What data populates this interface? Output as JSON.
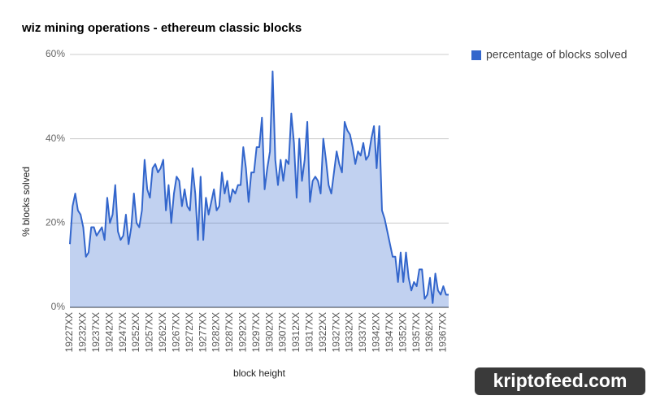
{
  "chart_data": {
    "type": "area",
    "title": "wiz mining operations - ethereum classic blocks",
    "x_label": "block height",
    "y_label": "% blocks solved",
    "categories": [
      "19227XX",
      null,
      null,
      null,
      null,
      "19232XX",
      null,
      null,
      null,
      null,
      "19237XX",
      null,
      null,
      null,
      null,
      "19242XX",
      null,
      null,
      null,
      null,
      "19247XX",
      null,
      null,
      null,
      null,
      "19252XX",
      null,
      null,
      null,
      null,
      "19257XX",
      null,
      null,
      null,
      null,
      "19262XX",
      null,
      null,
      null,
      null,
      "19267XX",
      null,
      null,
      null,
      null,
      "19272XX",
      null,
      null,
      null,
      null,
      "19277XX",
      null,
      null,
      null,
      null,
      "19282XX",
      null,
      null,
      null,
      null,
      "19287XX",
      null,
      null,
      null,
      null,
      "19292XX",
      null,
      null,
      null,
      null,
      "19297XX",
      null,
      null,
      null,
      null,
      "19302XX",
      null,
      null,
      null,
      null,
      "19307XX",
      null,
      null,
      null,
      null,
      "19312XX",
      null,
      null,
      null,
      null,
      "19317XX",
      null,
      null,
      null,
      null,
      "19322XX",
      null,
      null,
      null,
      null,
      "19327XX",
      null,
      null,
      null,
      null,
      "19332XX",
      null,
      null,
      null,
      null,
      "19337XX",
      null,
      null,
      null,
      null,
      "19342XX",
      null,
      null,
      null,
      null,
      "19347XX",
      null,
      null,
      null,
      null,
      "19352XX",
      null,
      null,
      null,
      null,
      "19357XX",
      null,
      null,
      null,
      null,
      "19362XX",
      null,
      null,
      null,
      null,
      "19367XX",
      null,
      null
    ],
    "series": [
      {
        "name": "percentage of blocks solved",
        "color": "#3366cc",
        "values": [
          15,
          24,
          27,
          23,
          22,
          19,
          12,
          13,
          19,
          19,
          17,
          18,
          19,
          16,
          26,
          20,
          22,
          29,
          18,
          16,
          17,
          22,
          15,
          19,
          27,
          20,
          19,
          23,
          35,
          28,
          26,
          33,
          34,
          32,
          33,
          35,
          23,
          29,
          20,
          27,
          31,
          30,
          24,
          28,
          24,
          23,
          33,
          27,
          16,
          31,
          16,
          26,
          22,
          25,
          28,
          23,
          24,
          32,
          27,
          30,
          25,
          28,
          27,
          29,
          29,
          38,
          33,
          25,
          32,
          32,
          38,
          38,
          45,
          28,
          33,
          37,
          56,
          35,
          29,
          35,
          30,
          35,
          34,
          46,
          39,
          26,
          40,
          30,
          35,
          44,
          25,
          30,
          31,
          30,
          27,
          40,
          35,
          29,
          27,
          32,
          37,
          34,
          32,
          44,
          42,
          41,
          38,
          34,
          37,
          36,
          39,
          35,
          36,
          40,
          43,
          33,
          43,
          23,
          21,
          18,
          15,
          12,
          12,
          6,
          13,
          6,
          13,
          7,
          4,
          6,
          5,
          9,
          9,
          2,
          3,
          7,
          1,
          8,
          4,
          3,
          5,
          3,
          3
        ]
      }
    ],
    "ylim": [
      0,
      60
    ],
    "yticks": [
      {
        "value": 0,
        "label": "0%"
      },
      {
        "value": 20,
        "label": "20%"
      },
      {
        "value": 40,
        "label": "40%"
      },
      {
        "value": 60,
        "label": "60%"
      }
    ],
    "grid": true,
    "legend": "right"
  },
  "watermark": "kriptofeed.com"
}
